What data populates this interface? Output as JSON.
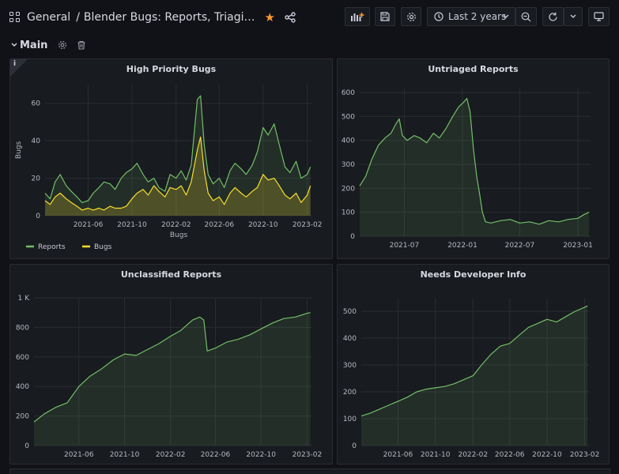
{
  "navbar": {
    "folder": "General",
    "separator": "/",
    "dashboard_title": "Blender Bugs: Reports, Triagi…",
    "time_range_label": "Last 2 years",
    "icons": [
      "apps-icon",
      "star-icon",
      "share-icon",
      "add-panel-icon",
      "save-icon",
      "settings-icon",
      "clock-icon",
      "chevron-down-icon",
      "zoom-out-icon",
      "refresh-icon",
      "chevron-down-icon",
      "tv-mode-icon"
    ],
    "star_color": "#ff9830"
  },
  "row": {
    "title": "Main",
    "icons": [
      "chevron-down-icon",
      "gear-icon",
      "trash-icon"
    ]
  },
  "colors": {
    "green": "#73bf69",
    "yellow": "#fade2a",
    "grid": "#2a2c31",
    "panel_bg": "#181b1f"
  },
  "panels": [
    {
      "title": "High Priority Bugs",
      "info_glyph": "i",
      "chart_data": {
        "type": "line",
        "ylabel": "Bugs",
        "xlabel": "Bugs",
        "ylim": [
          0,
          70
        ],
        "yticks": [
          0,
          20,
          40,
          60
        ],
        "xticks": [
          "2021-06",
          "2021-10",
          "2022-02",
          "2022-06",
          "2022-10",
          "2023-02"
        ],
        "legend": "bottom-left",
        "series": [
          {
            "name": "Reports",
            "color": "#73bf69",
            "x": [
              "2021-02-01",
              "2021-02-15",
              "2021-03-01",
              "2021-03-15",
              "2021-04-01",
              "2021-04-15",
              "2021-05-01",
              "2021-05-15",
              "2021-06-01",
              "2021-06-15",
              "2021-07-01",
              "2021-07-15",
              "2021-08-01",
              "2021-08-15",
              "2021-09-01",
              "2021-09-15",
              "2021-10-01",
              "2021-10-15",
              "2021-11-01",
              "2021-11-15",
              "2021-12-01",
              "2021-12-15",
              "2022-01-01",
              "2022-01-15",
              "2022-02-01",
              "2022-02-15",
              "2022-03-01",
              "2022-03-15",
              "2022-04-01",
              "2022-04-10",
              "2022-04-20",
              "2022-05-01",
              "2022-05-15",
              "2022-06-01",
              "2022-06-15",
              "2022-07-01",
              "2022-07-15",
              "2022-08-01",
              "2022-08-15",
              "2022-09-01",
              "2022-09-15",
              "2022-10-01",
              "2022-10-15",
              "2022-11-01",
              "2022-11-15",
              "2022-12-01",
              "2022-12-15",
              "2023-01-01",
              "2023-01-15",
              "2023-02-01",
              "2023-02-10"
            ],
            "values": [
              12,
              9,
              18,
              22,
              16,
              13,
              10,
              7,
              8,
              12,
              15,
              18,
              17,
              14,
              20,
              23,
              25,
              28,
              22,
              18,
              20,
              15,
              13,
              22,
              20,
              24,
              19,
              27,
              62,
              64,
              38,
              22,
              17,
              20,
              15,
              24,
              28,
              25,
              22,
              27,
              34,
              47,
              43,
              49,
              38,
              26,
              23,
              29,
              20,
              22,
              26
            ]
          },
          {
            "name": "Bugs",
            "color": "#fade2a",
            "x": [
              "2021-02-01",
              "2021-02-15",
              "2021-03-01",
              "2021-03-15",
              "2021-04-01",
              "2021-04-15",
              "2021-05-01",
              "2021-05-15",
              "2021-06-01",
              "2021-06-15",
              "2021-07-01",
              "2021-07-15",
              "2021-08-01",
              "2021-08-15",
              "2021-09-01",
              "2021-09-15",
              "2021-10-01",
              "2021-10-15",
              "2021-11-01",
              "2021-11-15",
              "2021-12-01",
              "2021-12-15",
              "2022-01-01",
              "2022-01-15",
              "2022-02-01",
              "2022-02-15",
              "2022-03-01",
              "2022-03-15",
              "2022-04-01",
              "2022-04-10",
              "2022-04-20",
              "2022-05-01",
              "2022-05-15",
              "2022-06-01",
              "2022-06-15",
              "2022-07-01",
              "2022-07-15",
              "2022-08-01",
              "2022-08-15",
              "2022-09-01",
              "2022-09-15",
              "2022-10-01",
              "2022-10-15",
              "2022-11-01",
              "2022-11-15",
              "2022-12-01",
              "2022-12-15",
              "2023-01-01",
              "2023-01-15",
              "2023-02-01",
              "2023-02-10"
            ],
            "values": [
              8,
              6,
              10,
              12,
              9,
              7,
              5,
              3,
              4,
              3,
              4,
              3,
              5,
              4,
              4,
              5,
              9,
              12,
              14,
              11,
              16,
              13,
              10,
              15,
              14,
              16,
              11,
              18,
              35,
              42,
              24,
              12,
              8,
              10,
              6,
              12,
              15,
              12,
              10,
              13,
              15,
              22,
              19,
              20,
              16,
              11,
              9,
              12,
              7,
              11,
              16
            ]
          }
        ]
      }
    },
    {
      "title": "Untriaged Reports",
      "chart_data": {
        "type": "area",
        "ylim": [
          0,
          620
        ],
        "yticks": [
          0,
          100,
          200,
          300,
          400,
          500,
          600
        ],
        "xticks": [
          "2021-07",
          "2022-01",
          "2022-07",
          "2023-01"
        ],
        "series": [
          {
            "name": "",
            "color": "#73bf69",
            "x": [
              "2021-02-10",
              "2021-03-01",
              "2021-03-20",
              "2021-04-10",
              "2021-05-01",
              "2021-05-20",
              "2021-06-05",
              "2021-06-15",
              "2021-06-25",
              "2021-07-10",
              "2021-08-01",
              "2021-08-20",
              "2021-09-10",
              "2021-10-01",
              "2021-10-20",
              "2021-11-10",
              "2021-12-01",
              "2021-12-20",
              "2022-01-05",
              "2022-01-15",
              "2022-01-25",
              "2022-02-05",
              "2022-02-15",
              "2022-02-25",
              "2022-03-05",
              "2022-03-15",
              "2022-04-01",
              "2022-05-01",
              "2022-06-01",
              "2022-07-01",
              "2022-08-01",
              "2022-09-01",
              "2022-10-01",
              "2022-11-01",
              "2022-12-01",
              "2023-01-01",
              "2023-01-20",
              "2023-02-05"
            ],
            "values": [
              210,
              250,
              320,
              380,
              410,
              430,
              470,
              490,
              420,
              400,
              420,
              410,
              390,
              430,
              410,
              450,
              500,
              540,
              560,
              575,
              520,
              360,
              250,
              170,
              100,
              60,
              55,
              65,
              70,
              55,
              60,
              50,
              65,
              60,
              70,
              75,
              90,
              100
            ]
          }
        ]
      }
    },
    {
      "title": "Unclassified Reports",
      "chart_data": {
        "type": "area",
        "ylim": [
          0,
          1000
        ],
        "yticks": [
          0,
          200,
          400,
          600,
          800,
          1000
        ],
        "ytick_labels": [
          "0",
          "200",
          "400",
          "600",
          "800",
          "1 K"
        ],
        "xticks": [
          "2021-06",
          "2021-10",
          "2022-02",
          "2022-06",
          "2022-10",
          "2023-02"
        ],
        "series": [
          {
            "name": "",
            "color": "#73bf69",
            "x": [
              "2021-02-01",
              "2021-03-01",
              "2021-04-01",
              "2021-05-01",
              "2021-06-01",
              "2021-07-01",
              "2021-08-01",
              "2021-09-01",
              "2021-10-01",
              "2021-11-01",
              "2021-12-01",
              "2022-01-01",
              "2022-02-01",
              "2022-03-01",
              "2022-04-01",
              "2022-04-20",
              "2022-05-01",
              "2022-05-10",
              "2022-06-01",
              "2022-07-01",
              "2022-08-01",
              "2022-09-01",
              "2022-10-01",
              "2022-11-01",
              "2022-12-01",
              "2023-01-01",
              "2023-02-01",
              "2023-02-10"
            ],
            "values": [
              160,
              215,
              260,
              290,
              400,
              470,
              520,
              580,
              620,
              610,
              650,
              690,
              740,
              780,
              850,
              870,
              850,
              640,
              660,
              700,
              720,
              750,
              790,
              830,
              860,
              870,
              895,
              900
            ]
          }
        ]
      }
    },
    {
      "title": "Needs Developer Info",
      "chart_data": {
        "type": "area",
        "ylim": [
          0,
          550
        ],
        "yticks": [
          0,
          100,
          200,
          300,
          400,
          500
        ],
        "xticks": [
          "2021-06",
          "2021-10",
          "2022-02",
          "2022-06",
          "2022-10",
          "2023-02"
        ],
        "series": [
          {
            "name": "",
            "color": "#73bf69",
            "x": [
              "2021-02-01",
              "2021-03-01",
              "2021-04-01",
              "2021-05-01",
              "2021-06-01",
              "2021-07-01",
              "2021-08-01",
              "2021-09-01",
              "2021-10-01",
              "2021-11-01",
              "2021-12-01",
              "2022-01-01",
              "2022-02-01",
              "2022-03-01",
              "2022-04-01",
              "2022-05-01",
              "2022-06-01",
              "2022-07-01",
              "2022-08-01",
              "2022-09-01",
              "2022-10-01",
              "2022-11-01",
              "2022-12-01",
              "2023-01-01",
              "2023-02-01",
              "2023-02-10"
            ],
            "values": [
              110,
              120,
              135,
              150,
              165,
              180,
              200,
              210,
              215,
              220,
              230,
              245,
              260,
              300,
              340,
              370,
              380,
              410,
              440,
              455,
              470,
              460,
              480,
              500,
              515,
              520
            ]
          }
        ]
      }
    }
  ],
  "legend_labels": {
    "reports": "Reports",
    "bugs": "Bugs"
  }
}
